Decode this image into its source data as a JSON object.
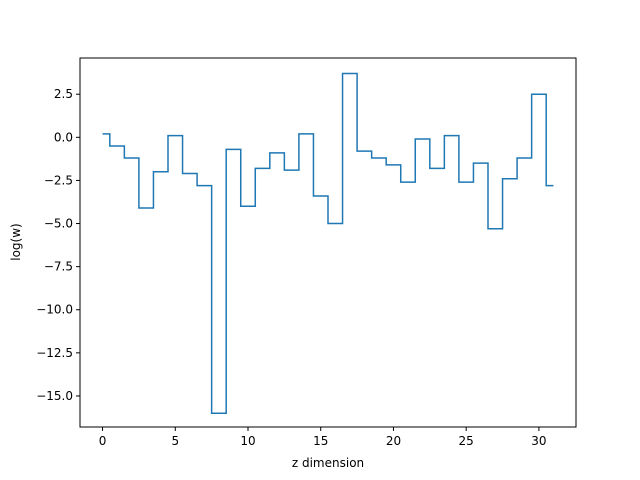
{
  "chart_data": {
    "type": "line",
    "step": true,
    "xlabel": "z dimension",
    "ylabel": "log(w)",
    "xlim": [
      -1.55,
      32.55
    ],
    "ylim": [
      -16.8,
      4.6
    ],
    "xticks": [
      0,
      5,
      10,
      15,
      20,
      25,
      30
    ],
    "xtick_labels": [
      "0",
      "5",
      "10",
      "15",
      "20",
      "25",
      "30"
    ],
    "yticks": [
      2.5,
      0.0,
      -2.5,
      -5.0,
      -7.5,
      -10.0,
      -12.5,
      -15.0
    ],
    "ytick_labels": [
      "2.5",
      "0.0",
      "−2.5",
      "−5.0",
      "−7.5",
      "−10.0",
      "−12.5",
      "−15.0"
    ],
    "grid": false,
    "series": [
      {
        "color": "#1f77b4",
        "x": [
          0,
          1,
          2,
          3,
          4,
          5,
          6,
          7,
          8,
          9,
          10,
          11,
          12,
          13,
          14,
          15,
          16,
          17,
          18,
          19,
          20,
          21,
          22,
          23,
          24,
          25,
          26,
          27,
          28,
          29,
          30,
          31
        ],
        "y": [
          0.2,
          -0.5,
          -1.2,
          -4.1,
          -2.0,
          0.1,
          -2.1,
          -2.8,
          -16.0,
          -0.7,
          -4.0,
          -1.8,
          -0.9,
          -1.9,
          0.2,
          -3.4,
          -5.0,
          3.7,
          -0.8,
          -1.2,
          -1.6,
          -2.6,
          -0.1,
          -1.8,
          0.1,
          -2.6,
          -1.5,
          -5.3,
          -2.4,
          -1.2,
          2.5,
          -2.8
        ]
      }
    ]
  }
}
